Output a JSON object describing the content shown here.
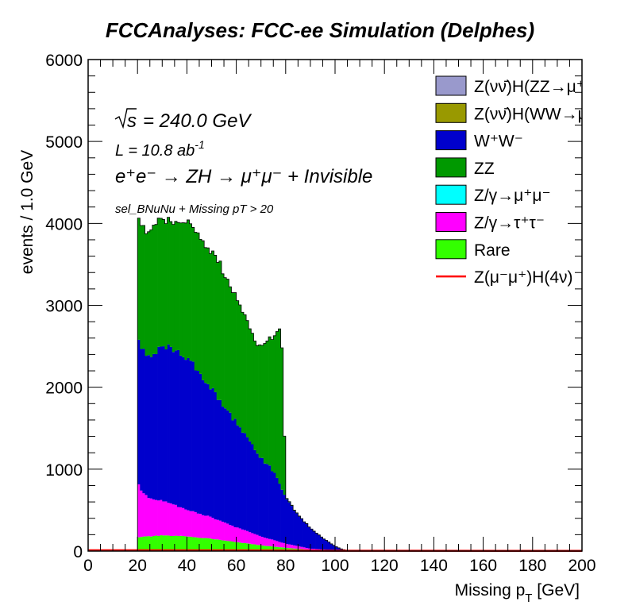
{
  "chart_data": {
    "type": "bar",
    "title": "FCCAnalyses: FCC-ee Simulation (Delphes)",
    "xlabel_main": "Missing p",
    "xlabel_sub": "T",
    "xlabel_unit": " [GeV]",
    "ylabel": "events / 1.0 GeV",
    "xlim": [
      0,
      200
    ],
    "ylim": [
      0,
      6000
    ],
    "x_ticks": [
      0,
      20,
      40,
      60,
      80,
      100,
      120,
      140,
      160,
      180,
      200
    ],
    "y_ticks": [
      0,
      1000,
      2000,
      3000,
      4000,
      5000,
      6000
    ],
    "annotations": {
      "sqrt_s": "= 240.0 GeV",
      "lumi_pre": "L = 10.8 ab",
      "lumi_exp": "-1",
      "process": "e⁺e⁻ → ZH → μ⁺μ⁻ + Invisible",
      "selection": "sel_BNuNu + Missing pT > 20"
    },
    "legend_position": "top-right",
    "legend": [
      {
        "label": "Z(νν̄)H(ZZ→μ⁺μ⁻ν⁺ν⁻)",
        "color": "#9999cc",
        "kind": "fill"
      },
      {
        "label": "Z(νν̄)H(WW→μ⁺νμ⁻ν)",
        "color": "#999900",
        "kind": "fill"
      },
      {
        "label": "W⁺W⁻",
        "color": "#0000cc",
        "kind": "fill"
      },
      {
        "label": "ZZ",
        "color": "#009900",
        "kind": "fill"
      },
      {
        "label": "Z/γ→μ⁺μ⁻",
        "color": "#00ffff",
        "kind": "fill"
      },
      {
        "label": "Z/γ→τ⁺τ⁻",
        "color": "#ff00ff",
        "kind": "fill"
      },
      {
        "label": "Rare",
        "color": "#33ff00",
        "kind": "fill"
      },
      {
        "label": "Z(μ⁻μ⁺)H(4ν)",
        "color": "#ff0000",
        "kind": "line"
      }
    ],
    "bin_width": 1.0,
    "series": [
      {
        "name": "Rare",
        "color": "#33ff00",
        "x": [
          20,
          30,
          40,
          50,
          60,
          70,
          80,
          90,
          100,
          110
        ],
        "values": [
          170,
          190,
          180,
          150,
          110,
          70,
          40,
          15,
          3,
          0
        ]
      },
      {
        "name": "Z/γ→τ⁺τ⁻",
        "color": "#ff00ff",
        "x": [
          20,
          21,
          25,
          30,
          40,
          50,
          60,
          70,
          80,
          90,
          100,
          110
        ],
        "values": [
          720,
          580,
          460,
          420,
          330,
          260,
          180,
          110,
          50,
          15,
          3,
          0
        ]
      },
      {
        "name": "W⁺W⁻",
        "color": "#0000cc",
        "x": [
          20,
          25,
          30,
          35,
          40,
          45,
          50,
          55,
          60,
          65,
          70,
          75,
          80,
          85,
          90,
          95,
          100,
          103,
          106,
          110
        ],
        "values": [
          1750,
          1730,
          1900,
          1880,
          1850,
          1720,
          1570,
          1400,
          1280,
          1120,
          960,
          840,
          560,
          380,
          250,
          140,
          55,
          15,
          2,
          0
        ]
      },
      {
        "name": "ZZ",
        "color": "#009900",
        "x": [
          20,
          25,
          30,
          35,
          40,
          45,
          50,
          55,
          60,
          65,
          68,
          72,
          75,
          77,
          78,
          79,
          80,
          85,
          90
        ],
        "values": [
          1480,
          1520,
          1580,
          1550,
          1650,
          1680,
          1700,
          1650,
          1500,
          1380,
          1300,
          1450,
          1650,
          1800,
          2050,
          1400,
          10,
          5,
          0
        ]
      },
      {
        "name": "Z/γ→μ⁺μ⁻",
        "color": "#00ffff",
        "x": [
          20,
          110
        ],
        "values": [
          0,
          0
        ]
      },
      {
        "name": "Z(νν̄)H(WW→μ⁺νμ⁻ν)",
        "color": "#999900",
        "x": [
          20,
          110
        ],
        "values": [
          0,
          0
        ]
      },
      {
        "name": "Z(νν̄)H(ZZ→μ⁺μ⁻ν⁺ν⁻)",
        "color": "#9999cc",
        "x": [
          20,
          110
        ],
        "values": [
          0,
          0
        ]
      },
      {
        "name": "Z(μ⁻μ⁺)H(4ν)",
        "color": "#ff0000",
        "type": "line",
        "x": [
          0,
          20,
          60,
          100,
          200
        ],
        "values": [
          10,
          10,
          8,
          4,
          2
        ]
      }
    ]
  }
}
